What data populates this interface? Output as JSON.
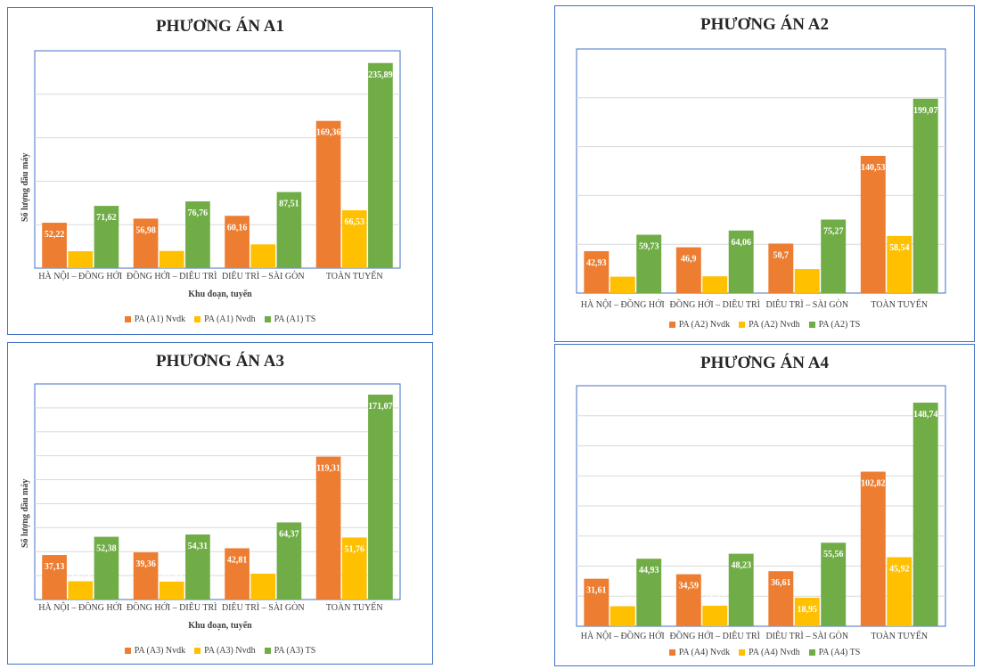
{
  "colors": {
    "nvdk": "#ed7d31",
    "nvdh": "#ffc000",
    "ts": "#70ad47",
    "grid": "#d9d9d9",
    "plot_border": "#4472c4"
  },
  "chart_data": [
    {
      "type": "bar",
      "title": "PHƯƠNG ÁN A1",
      "ylabel": "Số lượng đầu máy",
      "xlabel": "Khu đoạn, tuyến",
      "categories": [
        "HÀ NỘI – ĐỒNG HỚI",
        "ĐỒNG HỚI – DIÊU TRÌ",
        "DIÊU TRÌ – SÀI GÒN",
        "TOÀN TUYẾN"
      ],
      "series": [
        {
          "name": "PA (A1) Nvdk",
          "values": [
            52.22,
            56.98,
            60.16,
            169.36
          ],
          "labels": [
            "52,22",
            "56,98",
            "60,16",
            "169,36"
          ]
        },
        {
          "name": "PA (A1) Nvdh",
          "values": [
            19.4,
            19.78,
            27.35,
            66.53
          ],
          "labels": [
            "19,4",
            "19,78",
            "27,35",
            "66,53"
          ]
        },
        {
          "name": "PA (A1) TS",
          "values": [
            71.62,
            76.76,
            87.51,
            235.89
          ],
          "labels": [
            "71,62",
            "76,76",
            "87,51",
            "235,89"
          ]
        }
      ],
      "ylim": [
        0,
        250
      ],
      "grid": true,
      "legend": "bottom"
    },
    {
      "type": "bar",
      "title": "PHƯƠNG ÁN A2",
      "ylabel": "",
      "xlabel": "",
      "categories": [
        "HÀ NỘI – ĐỒNG HỚI",
        "ĐỒNG HỚI – DIÊU TRÌ",
        "DIÊU TRÌ – SÀI GÒN",
        "TOÀN TUYẾN"
      ],
      "series": [
        {
          "name": "PA (A2) Nvdk",
          "values": [
            42.93,
            46.9,
            50.7,
            140.53
          ],
          "labels": [
            "42,93",
            "46,9",
            "50,7",
            "140,53"
          ]
        },
        {
          "name": "PA (A2) Nvdh",
          "values": [
            16.8,
            17.16,
            24.57,
            58.54
          ],
          "labels": [
            "16,8",
            "17,16",
            "24,57",
            "58,54"
          ]
        },
        {
          "name": "PA (A2) TS",
          "values": [
            59.73,
            64.06,
            75.27,
            199.07
          ],
          "labels": [
            "59,73",
            "64,06",
            "75,27",
            "199,07"
          ]
        }
      ],
      "ylim": [
        0,
        250
      ],
      "grid": true,
      "legend": "bottom"
    },
    {
      "type": "bar",
      "title": "PHƯƠNG ÁN A3",
      "ylabel": "Số lượng đầu máy",
      "xlabel": "Khu đoạn, tuyến",
      "categories": [
        "HÀ NỘI – ĐỒNG HỚI",
        "ĐỒNG HỚI – DIÊU TRÌ",
        "DIÊU TRÌ – SÀI GÒN",
        "TOÀN TUYẾN"
      ],
      "series": [
        {
          "name": "PA (A3) Nvdk",
          "values": [
            37.13,
            39.36,
            42.81,
            119.31
          ],
          "labels": [
            "37,13",
            "39,36",
            "42,81",
            "119,31"
          ]
        },
        {
          "name": "PA (A3) Nvdh",
          "values": [
            15.25,
            14.95,
            21.56,
            51.76
          ],
          "labels": [
            "15,25",
            "14,95",
            "21,56",
            "51,76"
          ]
        },
        {
          "name": "PA (A3) TS",
          "values": [
            52.38,
            54.31,
            64.37,
            171.07
          ],
          "labels": [
            "52,38",
            "54,31",
            "64,37",
            "171,07"
          ]
        }
      ],
      "ylim": [
        0,
        180
      ],
      "grid": true,
      "legend": "bottom"
    },
    {
      "type": "bar",
      "title": "PHƯƠNG ÁN A4",
      "ylabel": "",
      "xlabel": "",
      "categories": [
        "HÀ NỘI – ĐỒNG HỚI",
        "ĐỒNG HỚI – DIÊU TRÌ",
        "DIÊU TRÌ – SÀI GÒN",
        "TOÀN TUYẾN"
      ],
      "series": [
        {
          "name": "PA (A4) Nvdk",
          "values": [
            31.61,
            34.59,
            36.61,
            102.82
          ],
          "labels": [
            "31,61",
            "34,59",
            "36,61",
            "102,82"
          ]
        },
        {
          "name": "PA (A4) Nvdh",
          "values": [
            13.32,
            13.64,
            18.95,
            45.92
          ],
          "labels": [
            "13,32",
            "13,64",
            "18,95",
            "45,92"
          ]
        },
        {
          "name": "PA (A4) TS",
          "values": [
            44.93,
            48.23,
            55.56,
            148.74
          ],
          "labels": [
            "44,93",
            "48,23",
            "55,56",
            "148,74"
          ]
        }
      ],
      "ylim": [
        0,
        160
      ],
      "grid": true,
      "legend": "bottom"
    }
  ]
}
